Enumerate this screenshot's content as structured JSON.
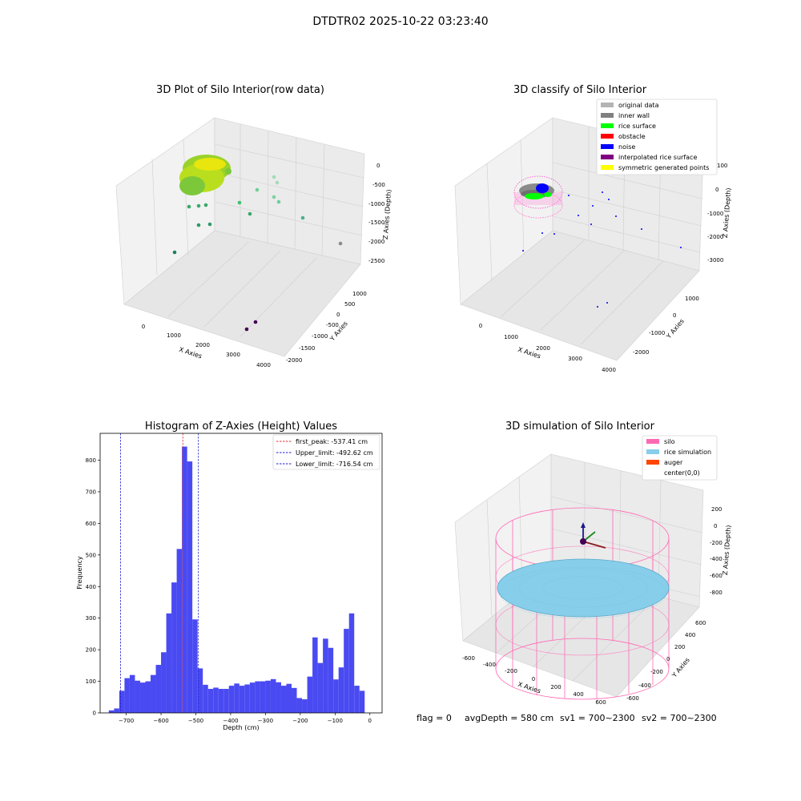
{
  "figure": {
    "title": "DTDTR02 2025-10-22 03:23:40",
    "status": {
      "flag": "flag = 0",
      "avg_depth": "avgDepth = 580 cm",
      "sv1": "sv1 = 700~2300",
      "sv2": "sv2 = 700~2300"
    }
  },
  "colors": {
    "hist_bar": "#4a4af2",
    "first_peak_line": "#e03030",
    "limit_line": "#2020d0",
    "silo": "#ff69b4",
    "rice_simulation": "#87ceeb",
    "auger": "#ff4500"
  },
  "chart_data": [
    {
      "type": "scatter",
      "title": "3D Plot of Silo Interior(row data)",
      "xlabel": "X Axies",
      "ylabel": "Y Axies",
      "zlabel": "Z Axies (Depth)",
      "x_ticks": [
        "0",
        "1000",
        "2000",
        "3000",
        "4000"
      ],
      "y_ticks": [
        "-2000",
        "-1500",
        "-1000",
        "-500",
        "0",
        "500",
        "1000"
      ],
      "z_ticks": [
        "0",
        "-500",
        "-1000",
        "-1500",
        "-2000",
        "-2500"
      ]
    },
    {
      "type": "scatter",
      "title": "3D classify of Silo Interior",
      "xlabel": "X Axies",
      "ylabel": "Y Axies",
      "zlabel": "Z Axies (Depth)",
      "x_ticks": [
        "0",
        "1000",
        "2000",
        "3000",
        "4000"
      ],
      "y_ticks": [
        "-2000",
        "-1000",
        "0",
        "1000"
      ],
      "z_ticks": [
        "0",
        "-1000",
        "-2000",
        "-3000"
      ],
      "z_top_tick": "100",
      "legend": [
        {
          "label": "original data",
          "color": "#b4b4b4"
        },
        {
          "label": "inner wall",
          "color": "#808080"
        },
        {
          "label": "rice surface",
          "color": "#00ff00"
        },
        {
          "label": "obstacle",
          "color": "#ff0000"
        },
        {
          "label": "noise",
          "color": "#0000ff"
        },
        {
          "label": "interpolated rice surface",
          "color": "#800080"
        },
        {
          "label": "symmetric generated points",
          "color": "#ffff00"
        }
      ]
    },
    {
      "type": "bar",
      "title": "Histogram of Z-Axies (Height) Values",
      "xlabel": "Depth (cm)",
      "ylabel": "Frequency",
      "xlim": [
        -775,
        35
      ],
      "ylim": [
        0,
        885
      ],
      "x_ticks": [
        -700,
        -600,
        -500,
        -400,
        -300,
        -200,
        -100,
        0
      ],
      "y_ticks": [
        0,
        100,
        200,
        300,
        400,
        500,
        600,
        700,
        800
      ],
      "bin_start": -750,
      "bin_width": 15,
      "values": [
        8,
        14,
        70,
        110,
        120,
        102,
        96,
        100,
        120,
        152,
        192,
        315,
        413,
        519,
        843,
        796,
        296,
        141,
        89,
        76,
        80,
        76,
        76,
        86,
        93,
        86,
        90,
        96,
        100,
        100,
        102,
        107,
        97,
        86,
        92,
        79,
        47,
        43,
        115,
        239,
        158,
        235,
        206,
        106,
        144,
        266,
        315,
        86,
        70
      ],
      "vlines": [
        {
          "name": "first_peak: -537.41 cm",
          "x": -537.41,
          "color_key": "first_peak_line"
        },
        {
          "name": "Upper_limit: -492.62 cm",
          "x": -492.62,
          "color_key": "limit_line"
        },
        {
          "name": "Lower_limit: -716.54 cm",
          "x": -716.54,
          "color_key": "limit_line"
        }
      ],
      "legend_position": "top-right"
    },
    {
      "type": "scatter",
      "title": "3D simulation of Silo Interior",
      "xlabel": "X Axies",
      "ylabel": "Y Axies",
      "zlabel": "Z Axies (Depth)",
      "x_ticks": [
        "-600",
        "-400",
        "-200",
        "0",
        "200",
        "400",
        "600"
      ],
      "y_ticks": [
        "-600",
        "-400",
        "-200",
        "0",
        "200",
        "400",
        "600"
      ],
      "z_ticks": [
        "200",
        "0",
        "-200",
        "-400",
        "-600",
        "-800"
      ],
      "legend": [
        {
          "label": "silo",
          "color": "#ff69b4"
        },
        {
          "label": "rice simulation",
          "color": "#87ceeb"
        },
        {
          "label": "auger",
          "color": "#ff4500"
        },
        {
          "label": "center(0,0)",
          "color": ""
        }
      ]
    }
  ]
}
